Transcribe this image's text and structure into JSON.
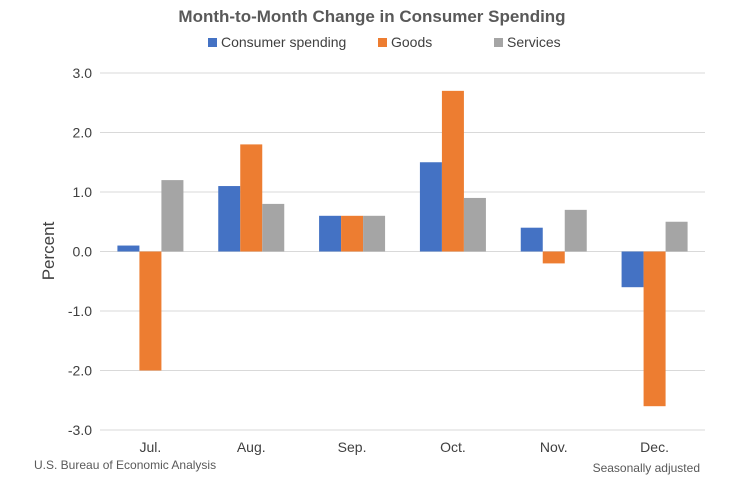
{
  "chart_data": {
    "type": "bar",
    "title": "Month-to-Month Change in Consumer Spending",
    "ylabel": "Percent",
    "xlabel": "",
    "ylim": [
      -3.0,
      3.0
    ],
    "yticks": [
      "3.0",
      "2.0",
      "1.0",
      "0.0",
      "-1.0",
      "-2.0",
      "-3.0"
    ],
    "ytick_values": [
      3,
      2,
      1,
      0,
      -1,
      -2,
      -3
    ],
    "grid": true,
    "legend_placement": "top",
    "categories": [
      "Jul.",
      "Aug.",
      "Sep.",
      "Oct.",
      "Nov.",
      "Dec."
    ],
    "series": [
      {
        "name": "Consumer spending",
        "color": "#4472C4",
        "values": [
          0.1,
          1.1,
          0.6,
          1.5,
          0.4,
          -0.6
        ]
      },
      {
        "name": "Goods",
        "color": "#ED7D31",
        "values": [
          -2.0,
          1.8,
          0.6,
          2.7,
          -0.2,
          -2.6
        ]
      },
      {
        "name": "Services",
        "color": "#A5A5A5",
        "values": [
          1.2,
          0.8,
          0.6,
          0.9,
          0.7,
          0.5
        ]
      }
    ]
  },
  "footer": {
    "source": "U.S. Bureau of Economic Analysis",
    "note": "Seasonally adjusted"
  }
}
